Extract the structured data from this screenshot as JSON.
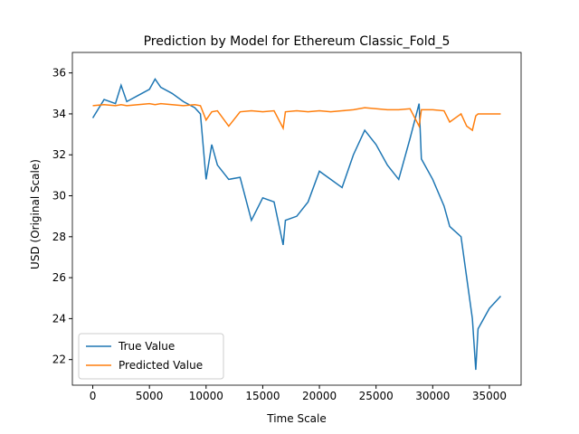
{
  "chart_data": {
    "type": "line",
    "title": "Prediction by Model for Ethereum Classic_Fold_5",
    "x_label": "Time Scale",
    "y_label": "USD (Original Scale)",
    "x": [
      0,
      1000,
      2000,
      2500,
      3000,
      4000,
      5000,
      5500,
      6000,
      7000,
      8000,
      9000,
      9500,
      10000,
      10500,
      11000,
      12000,
      13000,
      14000,
      15000,
      16000,
      16800,
      17000,
      18000,
      19000,
      20000,
      21000,
      22000,
      23000,
      24000,
      25000,
      26000,
      27000,
      28000,
      28800,
      29000,
      30000,
      31000,
      31500,
      32500,
      33000,
      33500,
      33800,
      34000,
      35000,
      36000
    ],
    "series": [
      {
        "name": "True Value",
        "color": "#1f77b4",
        "values": [
          33.8,
          34.7,
          34.5,
          35.4,
          34.6,
          34.9,
          35.2,
          35.7,
          35.3,
          35.0,
          34.6,
          34.3,
          34.0,
          30.8,
          32.5,
          31.5,
          30.8,
          30.9,
          28.8,
          29.9,
          29.7,
          27.6,
          28.8,
          29.0,
          29.7,
          31.2,
          30.8,
          30.4,
          32.0,
          33.2,
          32.5,
          31.5,
          30.8,
          32.8,
          34.5,
          31.8,
          30.8,
          29.5,
          28.5,
          28.0,
          26.0,
          24.0,
          21.5,
          23.5,
          24.5,
          25.1
        ]
      },
      {
        "name": "Predicted Value",
        "color": "#ff7f0e",
        "values": [
          34.4,
          34.45,
          34.4,
          34.45,
          34.4,
          34.45,
          34.5,
          34.45,
          34.5,
          34.45,
          34.4,
          34.45,
          34.4,
          33.7,
          34.1,
          34.15,
          33.4,
          34.1,
          34.15,
          34.1,
          34.15,
          33.3,
          34.1,
          34.15,
          34.1,
          34.15,
          34.1,
          34.15,
          34.2,
          34.3,
          34.25,
          34.2,
          34.2,
          34.25,
          33.4,
          34.2,
          34.2,
          34.15,
          33.6,
          34.0,
          33.4,
          33.2,
          33.9,
          34.0,
          34.0,
          34.0
        ]
      }
    ],
    "xlim": [
      -1800,
      37800
    ],
    "xticks": [
      0,
      5000,
      10000,
      15000,
      20000,
      25000,
      30000,
      35000
    ],
    "ylim": [
      20.75,
      37.0
    ],
    "yticks": [
      22,
      24,
      26,
      28,
      30,
      32,
      34,
      36
    ],
    "legend": "lower left"
  }
}
